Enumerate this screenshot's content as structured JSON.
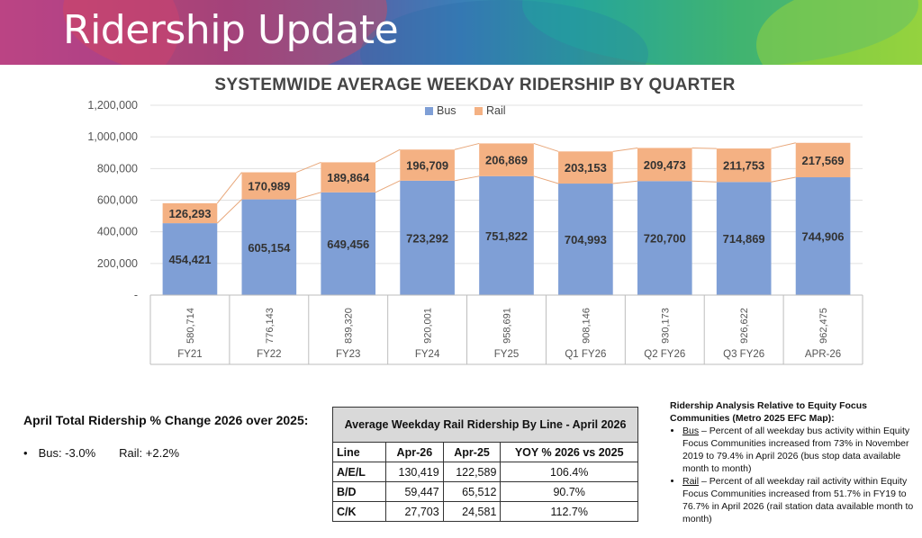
{
  "header": {
    "title": "Ridership Update"
  },
  "chart_data": {
    "type": "bar",
    "stacked": true,
    "title": "SYSTEMWIDE AVERAGE WEEKDAY RIDERSHIP BY QUARTER",
    "categories": [
      "FY21",
      "FY22",
      "FY23",
      "FY24",
      "FY25",
      "Q1 FY26",
      "Q2 FY26",
      "Q3 FY26",
      "APR-26"
    ],
    "series": [
      {
        "name": "Bus",
        "color": "#7f9fd6",
        "values": [
          454421,
          605154,
          649456,
          723292,
          751822,
          704993,
          720700,
          714869,
          744906
        ],
        "labels": [
          "454,421",
          "605,154",
          "649,456",
          "723,292",
          "751,822",
          "704,993",
          "720,700",
          "714,869",
          "744,906"
        ]
      },
      {
        "name": "Rail",
        "color": "#f4b183",
        "values": [
          126293,
          170989,
          189864,
          196709,
          206869,
          203153,
          209473,
          211753,
          217569
        ],
        "labels": [
          "126,293",
          "170,989",
          "189,864",
          "196,709",
          "206,869",
          "203,153",
          "209,473",
          "211,753",
          "217,569"
        ]
      }
    ],
    "totals": [
      "580,714",
      "776,143",
      "839,320",
      "920,001",
      "958,691",
      "908,146",
      "930,173",
      "926,622",
      "962,475"
    ],
    "y_ticks": [
      "-",
      "200,000",
      "400,000",
      "600,000",
      "800,000",
      "1,000,000",
      "1,200,000"
    ],
    "ylim": [
      0,
      1200000
    ],
    "legend_position": "top-center",
    "grid": true
  },
  "summary": {
    "title": "April Total Ridership % Change 2026 over 2025:",
    "bullet": "•",
    "bus": "Bus:  -3.0%",
    "rail": "Rail:  +2.2%"
  },
  "rail_table": {
    "caption": "Average Weekday Rail Ridership By Line - April 2026",
    "headers": [
      "Line",
      "Apr-26",
      "Apr-25",
      "YOY % 2026 vs 2025"
    ],
    "rows": [
      [
        "A/E/L",
        "130,419",
        "122,589",
        "106.4%"
      ],
      [
        "B/D",
        "59,447",
        "65,512",
        "90.7%"
      ],
      [
        "C/K",
        "27,703",
        "24,581",
        "112.7%"
      ]
    ]
  },
  "analysis": {
    "heading": "Ridership Analysis Relative to Equity Focus Communities (Metro 2025 EFC Map):",
    "items": [
      {
        "label": "Bus",
        "text": " – Percent of all weekday bus activity within Equity Focus Communities increased from 73% in November 2019 to 79.4% in April 2026 (bus stop data available month to month)"
      },
      {
        "label": "Rail",
        "text": " – Percent of all weekday rail activity within Equity Focus Communities increased from 51.7% in FY19 to 76.7% in April 2026 (rail station data available month to month)"
      }
    ]
  }
}
